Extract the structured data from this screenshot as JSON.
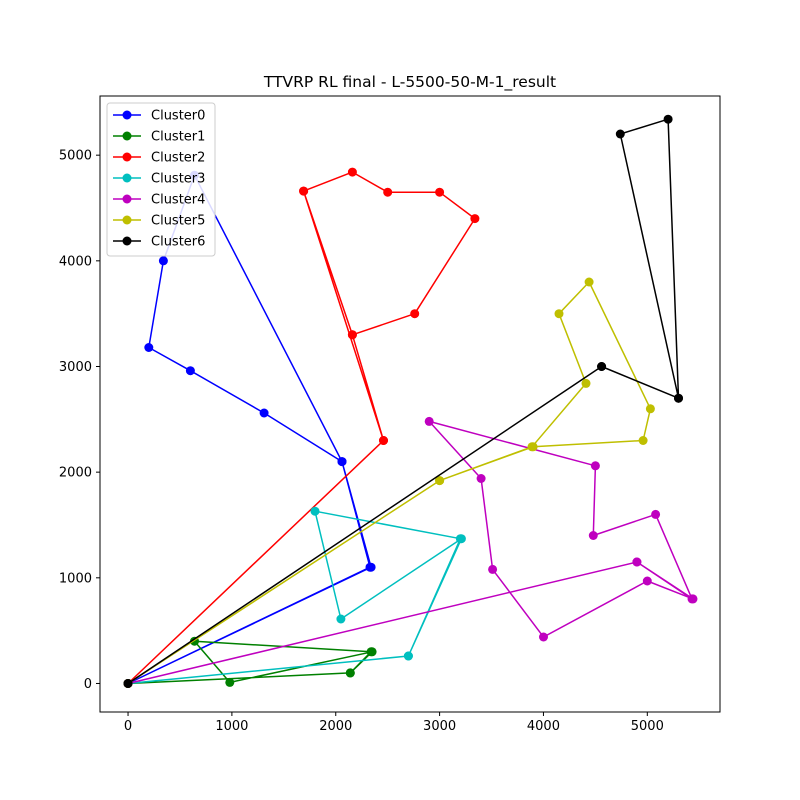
{
  "chart_data": {
    "type": "line",
    "title": "TTVRP RL final - L-5500-50-M-1_result",
    "xlabel": "",
    "ylabel": "",
    "xlim": [
      -270,
      5700
    ],
    "ylim": [
      -270,
      5560
    ],
    "xticks": [
      0,
      1000,
      2000,
      3000,
      4000,
      5000
    ],
    "yticks": [
      0,
      1000,
      2000,
      3000,
      4000,
      5000
    ],
    "grid": false,
    "legend": "top-left",
    "series": [
      {
        "name": "Cluster0",
        "color": "#0000ff",
        "points": [
          [
            0,
            0
          ],
          [
            2330,
            1100
          ],
          [
            2060,
            2100
          ],
          [
            1310,
            2560
          ],
          [
            600,
            2960
          ],
          [
            200,
            3180
          ],
          [
            340,
            4000
          ],
          [
            640,
            4810
          ],
          [
            2060,
            2100
          ],
          [
            2340,
            1100
          ],
          [
            0,
            0
          ]
        ]
      },
      {
        "name": "Cluster1",
        "color": "#008000",
        "points": [
          [
            0,
            0
          ],
          [
            2140,
            100
          ],
          [
            2350,
            300
          ],
          [
            980,
            10
          ],
          [
            640,
            400
          ],
          [
            2340,
            300
          ],
          [
            2140,
            100
          ],
          [
            0,
            0
          ]
        ]
      },
      {
        "name": "Cluster2",
        "color": "#ff0000",
        "points": [
          [
            0,
            0
          ],
          [
            2460,
            2300
          ],
          [
            1690,
            4660
          ],
          [
            2160,
            4840
          ],
          [
            2500,
            4650
          ],
          [
            3000,
            4650
          ],
          [
            3340,
            4400
          ],
          [
            2760,
            3500
          ],
          [
            2160,
            3300
          ],
          [
            1690,
            4660
          ],
          [
            2160,
            3300
          ],
          [
            2460,
            2300
          ],
          [
            0,
            0
          ]
        ]
      },
      {
        "name": "Cluster3",
        "color": "#00bfbf",
        "points": [
          [
            0,
            0
          ],
          [
            2700,
            260
          ],
          [
            3200,
            1370
          ],
          [
            1800,
            1630
          ],
          [
            2050,
            610
          ],
          [
            3210,
            1370
          ],
          [
            2700,
            260
          ],
          [
            0,
            0
          ]
        ]
      },
      {
        "name": "Cluster4",
        "color": "#bf00bf",
        "points": [
          [
            0,
            0
          ],
          [
            4900,
            1150
          ],
          [
            5430,
            800
          ],
          [
            5080,
            1600
          ],
          [
            4480,
            1400
          ],
          [
            4500,
            2060
          ],
          [
            2900,
            2480
          ],
          [
            3400,
            1940
          ],
          [
            3510,
            1080
          ],
          [
            4000,
            440
          ],
          [
            5000,
            970
          ],
          [
            5440,
            800
          ],
          [
            4900,
            1150
          ],
          [
            0,
            0
          ]
        ]
      },
      {
        "name": "Cluster5",
        "color": "#bfbf00",
        "points": [
          [
            0,
            0
          ],
          [
            3000,
            1920
          ],
          [
            3900,
            2240
          ],
          [
            4960,
            2300
          ],
          [
            5030,
            2600
          ],
          [
            4440,
            3800
          ],
          [
            4150,
            3500
          ],
          [
            4410,
            2840
          ],
          [
            3890,
            2240
          ],
          [
            3000,
            1920
          ],
          [
            0,
            0
          ]
        ]
      },
      {
        "name": "Cluster6",
        "color": "#000000",
        "points": [
          [
            0,
            0
          ],
          [
            4560,
            3000
          ],
          [
            5300,
            2700
          ],
          [
            4740,
            5200
          ],
          [
            5200,
            5340
          ],
          [
            5300,
            2700
          ],
          [
            4560,
            3000
          ],
          [
            0,
            0
          ]
        ]
      }
    ]
  }
}
